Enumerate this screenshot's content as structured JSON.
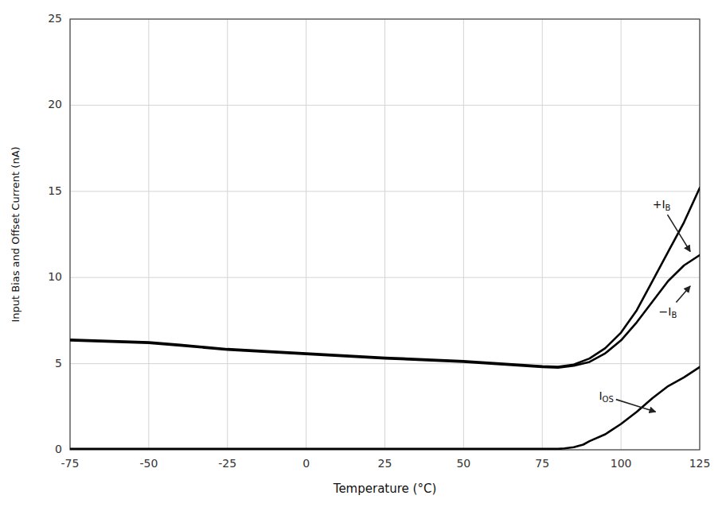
{
  "chart_data": {
    "type": "line",
    "xlabel": "Temperature (°C)",
    "ylabel": "Input Bias and Offset Current (nA)",
    "xlim": [
      -75,
      125
    ],
    "ylim": [
      0,
      25
    ],
    "xticks": [
      -75,
      -50,
      -25,
      0,
      25,
      50,
      75,
      100,
      125
    ],
    "yticks": [
      0,
      5,
      10,
      15,
      20,
      25
    ],
    "grid": true,
    "series": [
      {
        "color": "#000000",
        "x": [
          -75,
          -50,
          -40,
          -25,
          0,
          25,
          50,
          75,
          80,
          85,
          90,
          95,
          100,
          105,
          110,
          115,
          120,
          125
        ],
        "values": [
          6.4,
          6.25,
          6.1,
          5.85,
          5.6,
          5.35,
          5.15,
          4.85,
          4.82,
          4.95,
          5.3,
          5.9,
          6.8,
          8.1,
          9.8,
          11.5,
          13.2,
          15.2
        ]
      },
      {
        "color": "#000000",
        "x": [
          -75,
          -50,
          -40,
          -25,
          0,
          25,
          50,
          75,
          80,
          85,
          90,
          95,
          100,
          105,
          110,
          115,
          120,
          125
        ],
        "values": [
          6.35,
          6.2,
          6.05,
          5.8,
          5.55,
          5.3,
          5.1,
          4.8,
          4.77,
          4.88,
          5.1,
          5.6,
          6.35,
          7.4,
          8.6,
          9.8,
          10.7,
          11.3
        ]
      },
      {
        "color": "#000000",
        "x": [
          -75,
          -50,
          -40,
          -25,
          0,
          25,
          50,
          75,
          80,
          82,
          85,
          88,
          90,
          95,
          100,
          105,
          110,
          115,
          120,
          125
        ],
        "values": [
          0.05,
          0.05,
          0.05,
          0.05,
          0.05,
          0.05,
          0.05,
          0.05,
          0.05,
          0.08,
          0.15,
          0.3,
          0.5,
          0.9,
          1.5,
          2.2,
          3.0,
          3.7,
          4.2,
          4.8
        ]
      }
    ],
    "annotations": [
      {
        "text": "+IB",
        "x": 122,
        "y": 11.5,
        "text_x": 110,
        "text_y": 14.2
      },
      {
        "text": "−IB",
        "x": 122,
        "y": 9.5,
        "text_x": 112,
        "text_y": 8.0
      },
      {
        "text": "IOS",
        "x": 111,
        "y": 2.2,
        "text_x": 93,
        "text_y": 3.1
      }
    ]
  }
}
